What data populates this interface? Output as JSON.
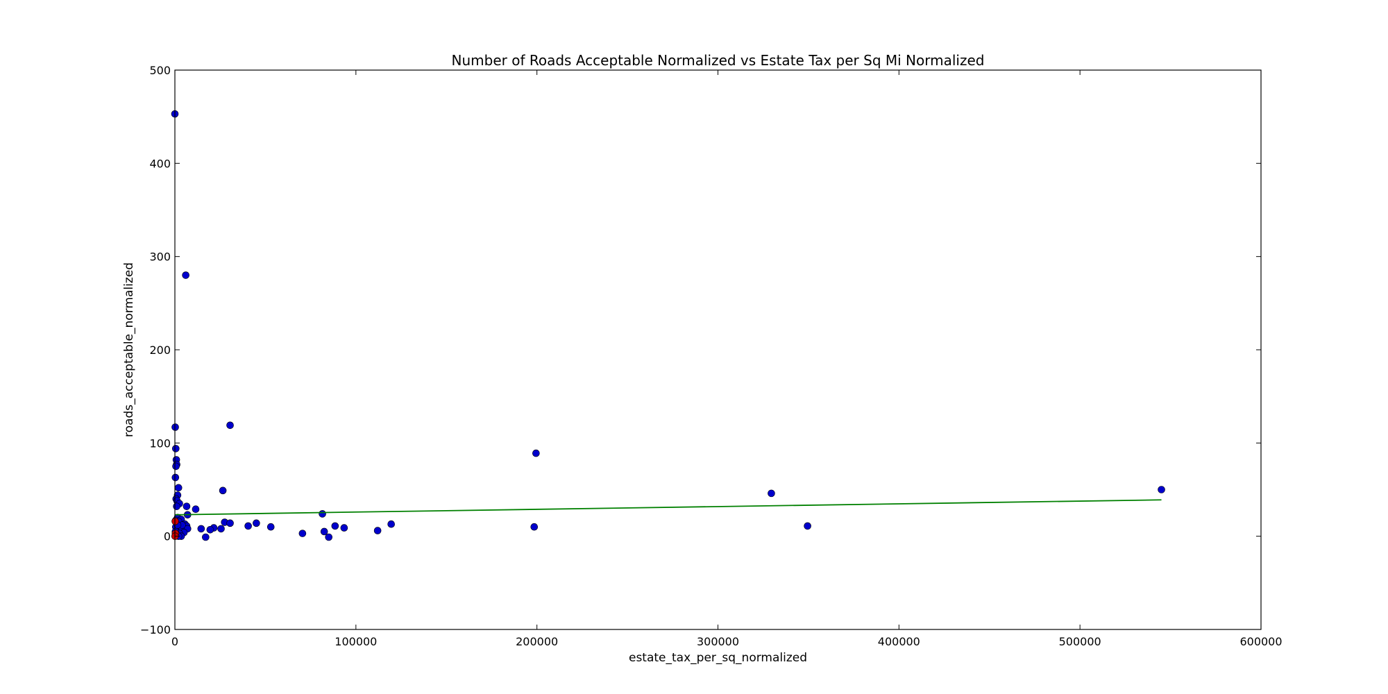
{
  "chart_data": {
    "type": "scatter",
    "title": "Number of Roads Acceptable Normalized vs Estate Tax per Sq Mi Normalized",
    "xlabel": "estate_tax_per_sq_normalized",
    "ylabel": "roads_acceptable_normalized",
    "xlim": [
      0,
      600000
    ],
    "ylim": [
      -100,
      500
    ],
    "x_ticks": [
      0,
      100000,
      200000,
      300000,
      400000,
      500000,
      600000
    ],
    "x_tick_labels": [
      "0",
      "100000",
      "200000",
      "300000",
      "400000",
      "500000",
      "600000"
    ],
    "y_ticks": [
      -100,
      0,
      100,
      200,
      300,
      400,
      500
    ],
    "y_tick_labels": [
      "−100",
      "0",
      "100",
      "200",
      "300",
      "400",
      "500"
    ],
    "grid": false,
    "series": [
      {
        "color": "#0000cc",
        "marker": "circle",
        "points": [
          [
            0,
            453
          ],
          [
            6000,
            280
          ],
          [
            30500,
            119
          ],
          [
            200,
            117
          ],
          [
            199500,
            89
          ],
          [
            500,
            94
          ],
          [
            800,
            82
          ],
          [
            1000,
            77
          ],
          [
            600,
            75
          ],
          [
            300,
            63
          ],
          [
            2000,
            52
          ],
          [
            26500,
            49
          ],
          [
            329500,
            46
          ],
          [
            545000,
            50
          ],
          [
            1500,
            44
          ],
          [
            700,
            40
          ],
          [
            1200,
            38
          ],
          [
            2500,
            35
          ],
          [
            1000,
            32
          ],
          [
            6500,
            32
          ],
          [
            11500,
            29
          ],
          [
            81500,
            24
          ],
          [
            7000,
            23
          ],
          [
            1500,
            20
          ],
          [
            3500,
            18
          ],
          [
            500,
            17
          ],
          [
            2000,
            16
          ],
          [
            27500,
            15
          ],
          [
            30500,
            14
          ],
          [
            45000,
            14
          ],
          [
            119500,
            13
          ],
          [
            5500,
            13
          ],
          [
            6500,
            11
          ],
          [
            40500,
            11
          ],
          [
            88500,
            11
          ],
          [
            349500,
            11
          ],
          [
            53000,
            10
          ],
          [
            198500,
            10
          ],
          [
            93500,
            9
          ],
          [
            25500,
            8
          ],
          [
            21500,
            9
          ],
          [
            14500,
            8
          ],
          [
            19500,
            7
          ],
          [
            1500,
            7
          ],
          [
            4000,
            7
          ],
          [
            7000,
            8
          ],
          [
            112000,
            6
          ],
          [
            82500,
            5
          ],
          [
            70500,
            3
          ],
          [
            5000,
            4
          ],
          [
            2500,
            3
          ],
          [
            1000,
            1
          ],
          [
            3500,
            0
          ],
          [
            17000,
            -1
          ],
          [
            85000,
            -1
          ],
          [
            2000,
            0
          ],
          [
            500,
            10
          ],
          [
            4000,
            12
          ],
          [
            1500,
            12
          ],
          [
            300,
            5
          ]
        ]
      },
      {
        "color": "#cc0000",
        "marker": "circle",
        "points": [
          [
            200,
            16
          ],
          [
            300,
            3
          ],
          [
            100,
            0
          ]
        ]
      }
    ],
    "trend_line": {
      "color": "#008000",
      "x": [
        0,
        545000
      ],
      "y": [
        23,
        39
      ]
    }
  }
}
